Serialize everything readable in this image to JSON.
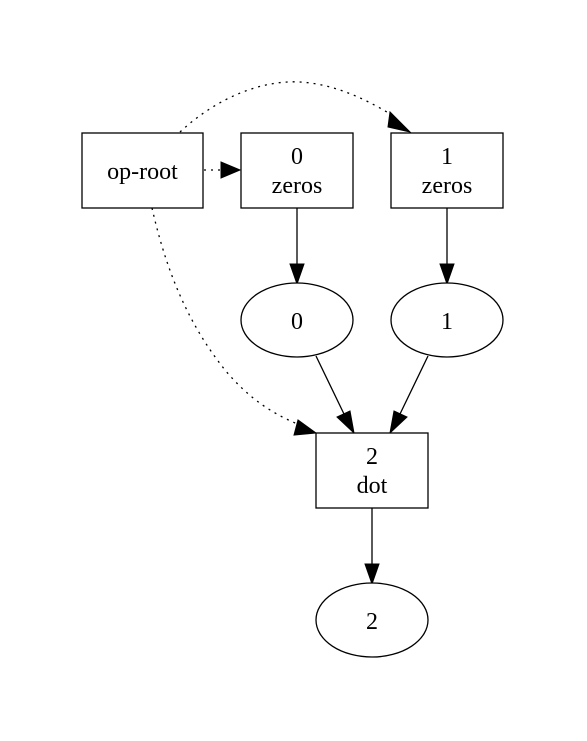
{
  "nodes": {
    "op_root": {
      "lines": [
        "op-root"
      ],
      "shape": "box"
    },
    "op_0": {
      "lines": [
        "0",
        "zeros"
      ],
      "shape": "box"
    },
    "op_1": {
      "lines": [
        "1",
        "zeros"
      ],
      "shape": "box"
    },
    "val_0": {
      "lines": [
        "0"
      ],
      "shape": "ellipse"
    },
    "val_1": {
      "lines": [
        "1"
      ],
      "shape": "ellipse"
    },
    "op_2": {
      "lines": [
        "2",
        "dot"
      ],
      "shape": "box"
    },
    "val_2": {
      "lines": [
        "2"
      ],
      "shape": "ellipse"
    }
  },
  "edges": [
    {
      "from": "op_root",
      "to": "op_0",
      "style": "dotted"
    },
    {
      "from": "op_root",
      "to": "op_1",
      "style": "dotted"
    },
    {
      "from": "op_root",
      "to": "op_2",
      "style": "dotted"
    },
    {
      "from": "op_0",
      "to": "val_0",
      "style": "solid"
    },
    {
      "from": "op_1",
      "to": "val_1",
      "style": "solid"
    },
    {
      "from": "val_0",
      "to": "op_2",
      "style": "solid"
    },
    {
      "from": "val_1",
      "to": "op_2",
      "style": "solid"
    },
    {
      "from": "op_2",
      "to": "val_2",
      "style": "solid"
    }
  ],
  "colors": {
    "stroke": "#000000",
    "background": "#ffffff"
  }
}
